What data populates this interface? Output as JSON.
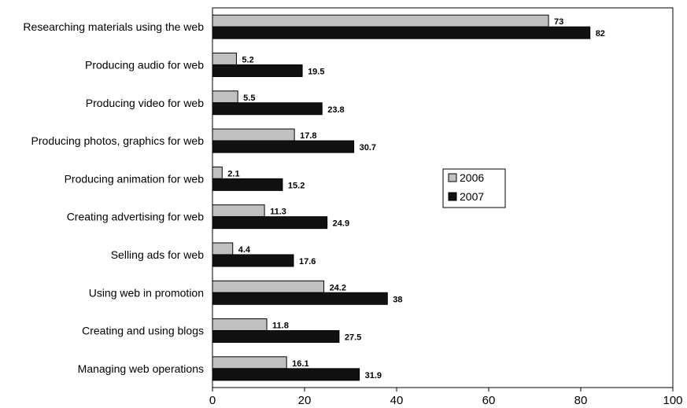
{
  "chart_data": {
    "type": "bar",
    "orientation": "horizontal",
    "title": "",
    "xlabel": "",
    "ylabel": "",
    "xlim": [
      0,
      100
    ],
    "xticks": [
      0,
      20,
      40,
      60,
      80,
      100
    ],
    "grid": false,
    "legend_position": "right-middle",
    "categories": [
      "Researching materials using the web",
      "Producing audio for web",
      "Producing video for web",
      "Producing photos, graphics for web",
      "Producing animation for web",
      "Creating advertising for web",
      "Selling ads for web",
      "Using web in promotion",
      "Creating and using blogs",
      "Managing web operations"
    ],
    "series": [
      {
        "name": "2006",
        "color": "#c0c0c0",
        "values": [
          73,
          5.2,
          5.5,
          17.8,
          2.1,
          11.3,
          4.4,
          24.2,
          11.8,
          16.1
        ]
      },
      {
        "name": "2007",
        "color": "#111111",
        "values": [
          82,
          19.5,
          23.8,
          30.7,
          15.2,
          24.9,
          17.6,
          38,
          27.5,
          31.9
        ]
      }
    ]
  }
}
